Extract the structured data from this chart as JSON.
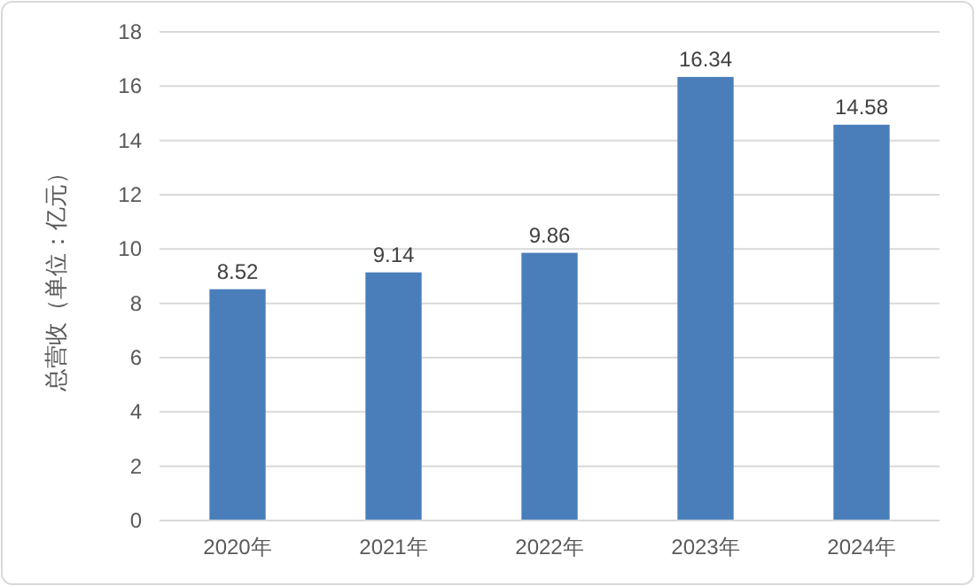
{
  "chart_data": {
    "type": "bar",
    "ylabel": "总营收（单位：亿元）",
    "categories": [
      "2020年",
      "2021年",
      "2022年",
      "2023年",
      "2024年"
    ],
    "values": [
      8.52,
      9.14,
      9.86,
      16.34,
      14.58
    ],
    "color": "#4a7ebb",
    "ylim": [
      0,
      18
    ],
    "yticks": [
      0,
      2,
      4,
      6,
      8,
      10,
      12,
      14,
      16,
      18
    ],
    "grid": "y",
    "data_labels": true
  }
}
